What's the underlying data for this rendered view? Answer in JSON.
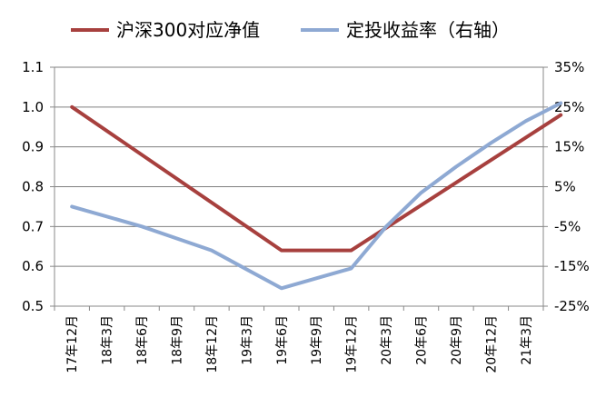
{
  "colors": {
    "series1": "#A7403E",
    "series2": "#8EA9D3",
    "axis": "#888888",
    "grid": "#7f7f7f"
  },
  "chart_data": {
    "type": "line",
    "legend_position": "top",
    "grid": true,
    "categories": [
      "17年12月",
      "18年3月",
      "18年6月",
      "18年9月",
      "18年12月",
      "19年3月",
      "19年6月",
      "19年9月",
      "19年12月",
      "20年3月",
      "20年6月",
      "20年9月",
      "20年12月",
      "21年3月"
    ],
    "y_left": {
      "ylim": [
        0.5,
        1.1
      ],
      "ticks": [
        "0.5",
        "0.6",
        "0.7",
        "0.8",
        "0.9",
        "1.0",
        "1.1"
      ]
    },
    "y_right": {
      "ylim": [
        -25,
        35
      ],
      "ticks": [
        "-25%",
        "-15%",
        "-5%",
        "5%",
        "15%",
        "25%",
        "35%"
      ]
    },
    "series": [
      {
        "name": "沪深300对应净值",
        "axis": "left",
        "x": [
          0,
          6,
          8,
          14
        ],
        "values": [
          1.0,
          0.64,
          0.64,
          0.98
        ]
      },
      {
        "name": "定投收益率（右轴）",
        "axis": "right",
        "x": [
          0,
          2,
          4,
          6,
          7,
          7.8,
          8,
          9,
          10,
          11,
          12,
          13,
          14
        ],
        "values": [
          0,
          -5,
          -11,
          -20.5,
          -18,
          -16,
          -15.5,
          -5,
          3.5,
          10,
          16,
          21.5,
          26
        ]
      }
    ]
  }
}
